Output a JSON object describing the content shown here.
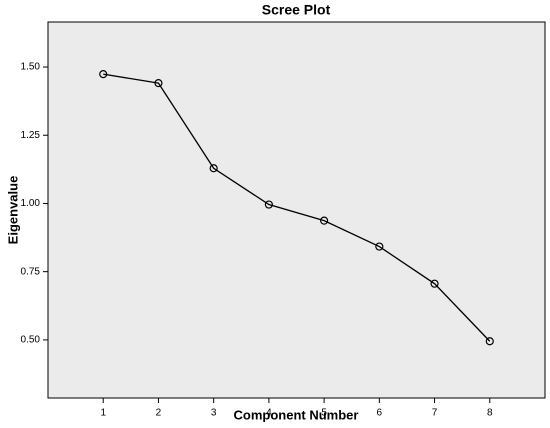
{
  "chart_data": {
    "type": "line",
    "title": "Scree Plot",
    "x_label": "Component Number",
    "y_label": "Eigenvalue",
    "x": [
      1,
      2,
      3,
      4,
      5,
      6,
      7,
      8
    ],
    "series": [
      {
        "color": "#000000",
        "values": [
          1.474,
          1.441,
          1.129,
          0.996,
          0.937,
          0.842,
          0.706,
          0.495
        ]
      }
    ],
    "xlim": [
      0,
      9
    ],
    "xticks": [
      1,
      2,
      3,
      4,
      5,
      6,
      7,
      8
    ],
    "ylim": [
      0.287,
      1.665
    ],
    "yticks": [
      {
        "value": 0.5,
        "label": "0.50"
      },
      {
        "value": 0.75,
        "label": "0.75"
      },
      {
        "value": 1.0,
        "label": "1.00"
      },
      {
        "value": 1.25,
        "label": "1.25"
      },
      {
        "value": 1.5,
        "label": "1.50"
      }
    ],
    "plot_background": "#ebebeb",
    "grid": false
  }
}
